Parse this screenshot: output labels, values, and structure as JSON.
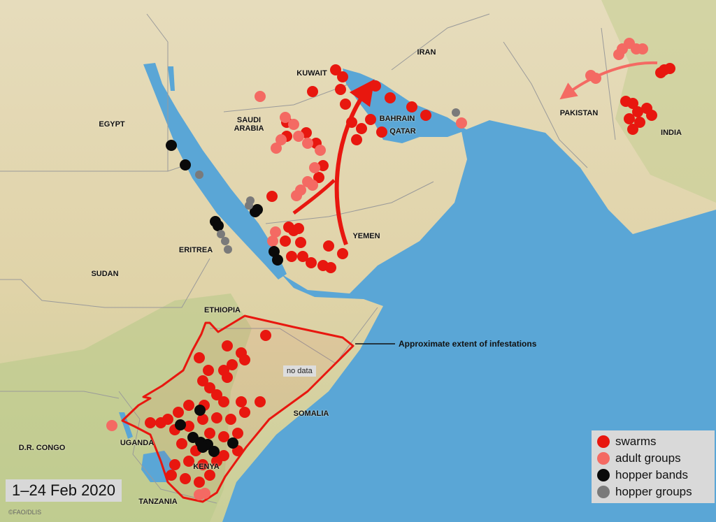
{
  "map": {
    "date_range": "1–24 Feb 2020",
    "credit": "©FAO/DLIS",
    "annotation": "Approximate extent of infestations",
    "no_data_label": "no data",
    "countries": [
      {
        "name": "EGYPT"
      },
      {
        "name": "SAUDI ARABIA"
      },
      {
        "name": "KUWAIT"
      },
      {
        "name": "IRAN"
      },
      {
        "name": "BAHRAIN"
      },
      {
        "name": "QATAR"
      },
      {
        "name": "PAKISTAN"
      },
      {
        "name": "INDIA"
      },
      {
        "name": "YEMEN"
      },
      {
        "name": "ERITREA"
      },
      {
        "name": "SUDAN"
      },
      {
        "name": "ETHIOPIA"
      },
      {
        "name": "SOMALIA"
      },
      {
        "name": "UGANDA"
      },
      {
        "name": "D.R. CONGO"
      },
      {
        "name": "KENYA"
      },
      {
        "name": "TANZANIA"
      }
    ],
    "legend": [
      {
        "label": "swarms",
        "color": "#e8170f"
      },
      {
        "label": "adult groups",
        "color": "#f46a63"
      },
      {
        "label": "hopper bands",
        "color": "#0a0a0a"
      },
      {
        "label": "hopper groups",
        "color": "#7a7a7a"
      }
    ],
    "colors": {
      "sea": "#5aa6d6",
      "land": "#e3d6b0",
      "extent_outline": "#e8170f",
      "migration_arrow": "#e8170f",
      "migration_arrow_light": "#f46a63"
    }
  }
}
